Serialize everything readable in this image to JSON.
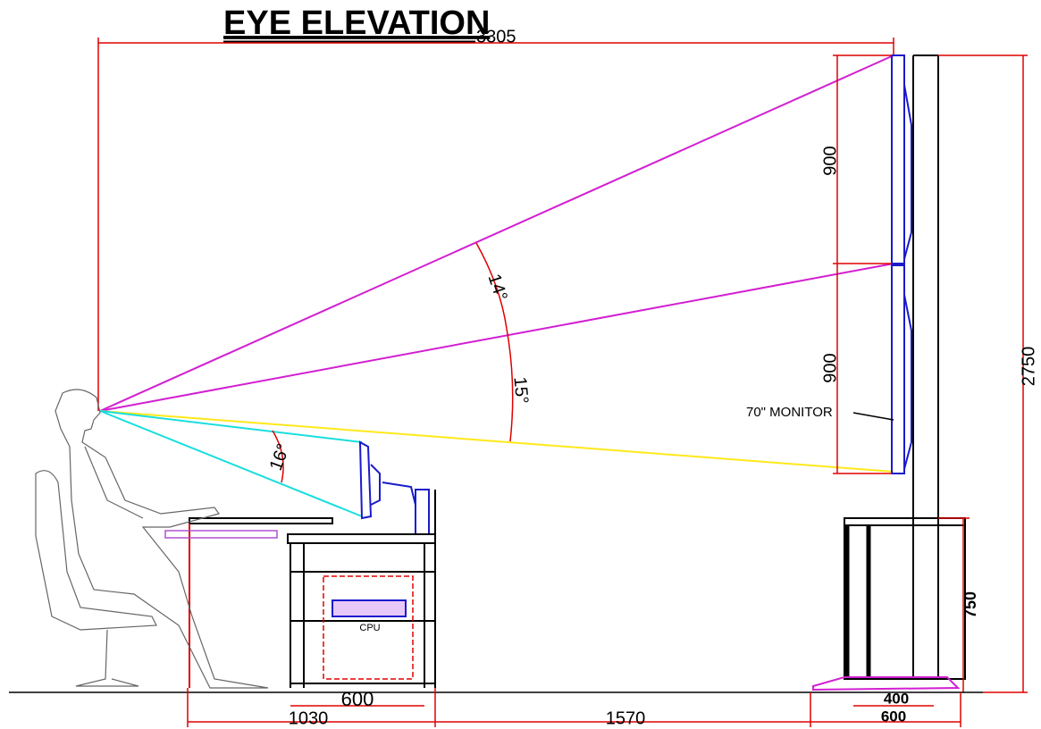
{
  "header": {
    "title": "EYE ELEVATION"
  },
  "dimensions": {
    "overall_distance": "3305",
    "upper_monitor_height": "900",
    "lower_monitor_height": "900",
    "total_height": "2750",
    "stand_height": "750",
    "desk_cabinet_width": "600",
    "desk_depth": "1030",
    "desk_to_stand": "1570",
    "post_width": "400",
    "stand_base_width": "600"
  },
  "angles": {
    "upper": "14°",
    "lower": "15°",
    "desk_monitor": "16°"
  },
  "labels": {
    "monitor": "70\" MONITOR",
    "cpu": "CPU"
  }
}
